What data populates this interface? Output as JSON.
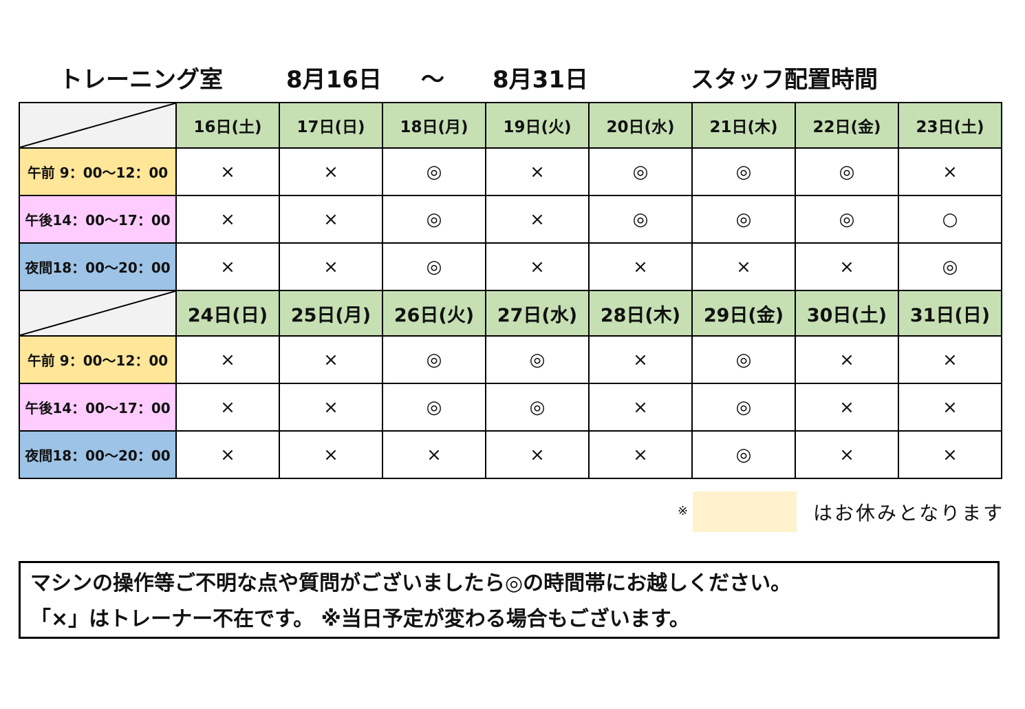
{
  "header": {
    "room": "トレーニング室",
    "start_date": "8月16日",
    "range_sep": "～",
    "end_date": "8月31日",
    "title": "スタッフ配置時間"
  },
  "weeks": [
    {
      "days": [
        "16日(土)",
        "17日(日)",
        "18日(月)",
        "19日(火)",
        "20日(水)",
        "21日(木)",
        "22日(金)",
        "23日(土)"
      ],
      "rows": [
        {
          "slot": "午前  9：00～12：00",
          "marks": [
            "×",
            "×",
            "◎",
            "×",
            "◎",
            "◎",
            "◎",
            "×"
          ]
        },
        {
          "slot": "午後14：00～17：00",
          "marks": [
            "×",
            "×",
            "◎",
            "×",
            "◎",
            "◎",
            "◎",
            "○"
          ]
        },
        {
          "slot": "夜間18：00～20：00",
          "marks": [
            "×",
            "×",
            "◎",
            "×",
            "×",
            "×",
            "×",
            "◎"
          ]
        }
      ]
    },
    {
      "days": [
        "24日(日)",
        "25日(月)",
        "26日(火)",
        "27日(水)",
        "28日(木)",
        "29日(金)",
        "30日(土)",
        "31日(日)"
      ],
      "rows": [
        {
          "slot": "午前  9：00～12：00",
          "marks": [
            "×",
            "×",
            "◎",
            "◎",
            "×",
            "◎",
            "×",
            "×"
          ]
        },
        {
          "slot": "午後14：00～17：00",
          "marks": [
            "×",
            "×",
            "◎",
            "◎",
            "×",
            "◎",
            "×",
            "×"
          ]
        },
        {
          "slot": "夜間18：00～20：00",
          "marks": [
            "×",
            "×",
            "×",
            "×",
            "×",
            "◎",
            "×",
            "×"
          ]
        }
      ]
    }
  ],
  "colors": {
    "day_header": "#c6e0b4",
    "morning": "#ffe699",
    "afternoon": "#ffccff",
    "evening": "#9dc3e6",
    "corner": "#f2f2f2",
    "holiday": "#fff2cc"
  },
  "legend": {
    "mark": "※",
    "text": "はお休みとなります"
  },
  "info": {
    "line1": "マシンの操作等ご不明な点や質問がございましたら◎の時間帯にお越しください。",
    "line2": "「×」はトレーナー不在です。 ※当日予定が変わる場合もございます。"
  }
}
